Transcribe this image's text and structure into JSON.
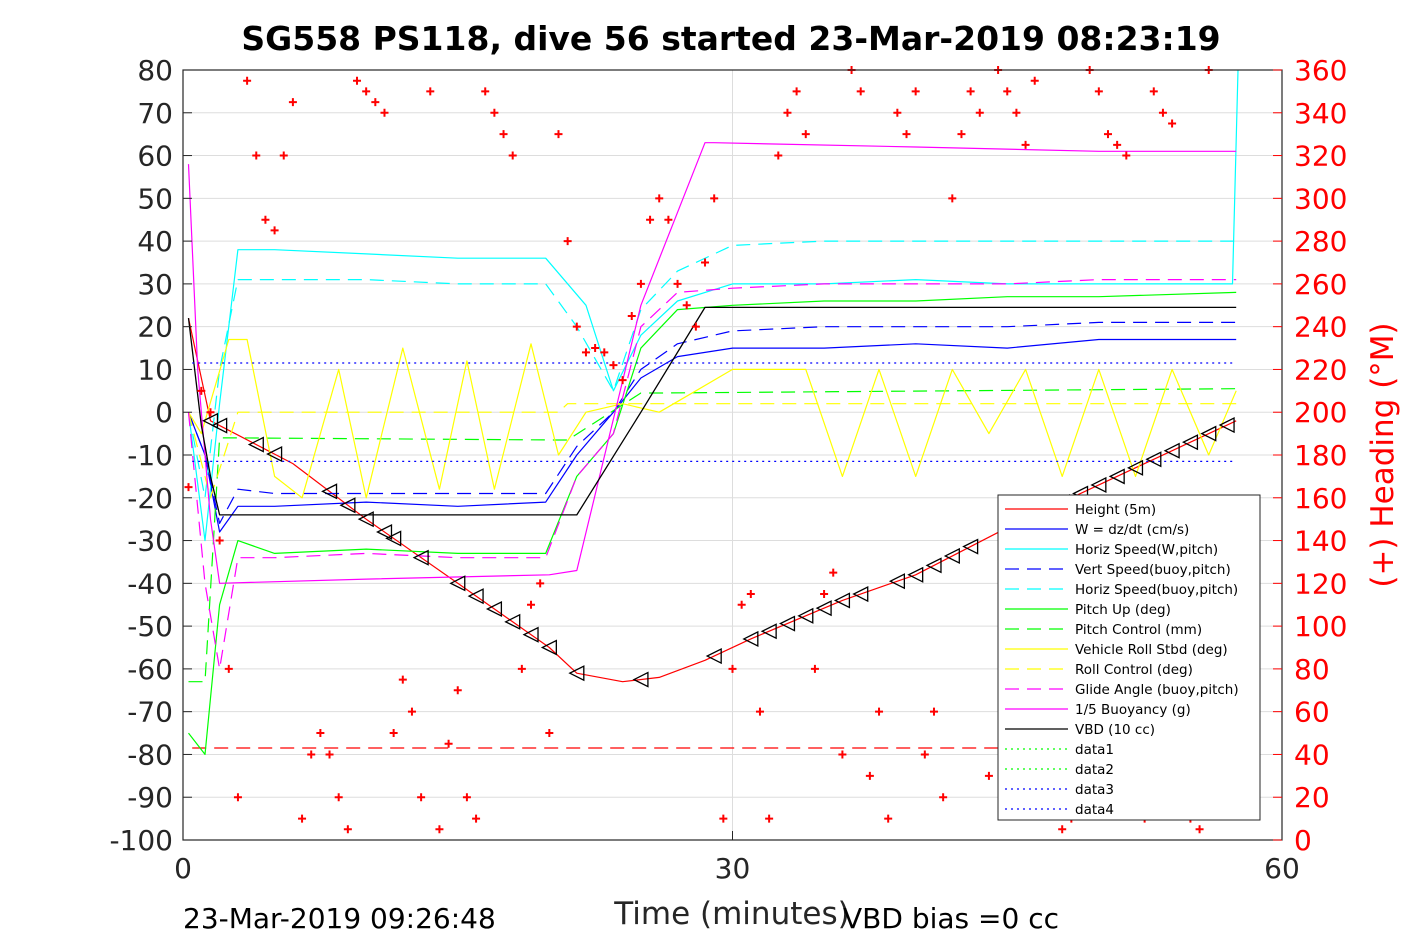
{
  "chart_data": {
    "type": "line",
    "title": "SG558 PS118, dive 56 started 23-Mar-2019 08:23:19",
    "xlabel": "Time (minutes)",
    "ylabel_right": "(+) Heading (°M)",
    "xlim": [
      0,
      60
    ],
    "ylim_left": [
      -100,
      80
    ],
    "ylim_right": [
      0,
      360
    ],
    "x_ticks": [
      "0",
      "30",
      "60"
    ],
    "y_ticks_left": [
      "80",
      "70",
      "60",
      "50",
      "40",
      "30",
      "20",
      "10",
      "0",
      "-10",
      "-20",
      "-30",
      "-40",
      "-50",
      "-60",
      "-70",
      "-80",
      "-90",
      "-100"
    ],
    "y_ticks_right": [
      "360",
      "340",
      "320",
      "300",
      "280",
      "260",
      "240",
      "220",
      "200",
      "180",
      "160",
      "140",
      "120",
      "100",
      "80",
      "60",
      "40",
      "20",
      "0"
    ],
    "grid": true,
    "legend_position": "bottom-right",
    "footer_left": "23-Mar-2019 09:26:48",
    "footer_right": "VBD bias =0 cc",
    "series": [
      {
        "name": "Height (5m)",
        "color": "#ff0000",
        "style": "solid",
        "x": [
          0.3,
          1.5,
          6,
          10,
          15,
          20,
          21.5,
          24,
          26,
          28.5,
          31,
          36,
          40,
          45,
          50,
          55,
          57.5
        ],
        "y": [
          22,
          -2,
          -12,
          -25,
          -40,
          -55,
          -61,
          -63,
          -62,
          -58,
          -53,
          -44,
          -38,
          -27,
          -17,
          -7,
          -2
        ]
      },
      {
        "name": "W = dz/dt (cm/s)",
        "color": "#0000ff",
        "style": "solid",
        "x": [
          0.3,
          1.2,
          2,
          3,
          5,
          10,
          15,
          19.8,
          21.5,
          23.5,
          25,
          27,
          30,
          35,
          40,
          45,
          50,
          57.5
        ],
        "y": [
          0,
          -10,
          -28,
          -22,
          -22,
          -21,
          -22,
          -21,
          -10,
          0,
          8,
          13,
          15,
          15,
          16,
          15,
          17,
          17
        ]
      },
      {
        "name": "Horiz Speed(W,pitch)",
        "color": "#00ffff",
        "style": "solid",
        "x": [
          0.3,
          1.2,
          2,
          3,
          5,
          10,
          15,
          19.8,
          22,
          23.5,
          25,
          27,
          30,
          35,
          40,
          45,
          50,
          57.3,
          57.6
        ],
        "y": [
          0,
          -30,
          2,
          38,
          38,
          37,
          36,
          36,
          25,
          5,
          18,
          26,
          30,
          30,
          31,
          30,
          30,
          30,
          80
        ]
      },
      {
        "name": "Vert Speed(buoy,pitch)",
        "color": "#0000ff",
        "style": "dash",
        "x": [
          0.3,
          1.2,
          2,
          3,
          5,
          10,
          15,
          19.8,
          21.5,
          23.5,
          25,
          27,
          30,
          35,
          40,
          45,
          50,
          57.5
        ],
        "y": [
          0,
          -10,
          -26,
          -18,
          -19,
          -19,
          -19,
          -19,
          -8,
          0,
          10,
          16,
          19,
          20,
          20,
          20,
          21,
          21
        ]
      },
      {
        "name": "Horiz Speed(buoy,pitch)",
        "color": "#00ffff",
        "style": "dash",
        "x": [
          0.3,
          1.2,
          2,
          3,
          5,
          10,
          15,
          19.8,
          21.5,
          23.5,
          25,
          27,
          30,
          35,
          40,
          45,
          50,
          57.5
        ],
        "y": [
          0,
          -20,
          10,
          31,
          31,
          31,
          30,
          30,
          20,
          5,
          24,
          33,
          39,
          40,
          40,
          40,
          40,
          40
        ]
      },
      {
        "name": "Pitch Up (deg)",
        "color": "#00ff00",
        "style": "solid",
        "x": [
          0.3,
          1.2,
          2,
          3,
          5,
          10,
          15,
          19.8,
          21.5,
          23.5,
          25,
          27,
          30,
          35,
          40,
          45,
          50,
          57.5
        ],
        "y": [
          -75,
          -80,
          -45,
          -30,
          -33,
          -32,
          -33,
          -33,
          -15,
          -5,
          15,
          24,
          25,
          26,
          26,
          27,
          27,
          28
        ]
      },
      {
        "name": "Pitch Control (mm)",
        "color": "#00ff00",
        "style": "dash",
        "x": [
          0.3,
          1.2,
          2,
          3,
          20.5,
          21,
          25,
          26,
          57.5
        ],
        "y": [
          -63,
          -63,
          -6,
          -6,
          -6.5,
          -6.5,
          4.5,
          4.5,
          5.5
        ]
      },
      {
        "name": "Vehicle Roll Stbd (deg)",
        "color": "#ffff00",
        "style": "solid",
        "x": [
          0.3,
          1,
          2.5,
          3.5,
          5,
          6.5,
          8.5,
          10,
          12,
          14,
          15.5,
          17,
          19,
          20.5,
          22,
          24,
          26,
          28,
          30,
          32,
          34,
          36,
          38,
          40,
          42,
          44,
          46,
          48,
          50,
          52,
          54,
          56,
          57.5
        ],
        "y": [
          0,
          -5,
          17,
          17,
          -15,
          -20,
          10,
          -20,
          15,
          -18,
          12,
          -18,
          16,
          -10,
          0,
          2,
          0,
          5,
          10,
          10,
          10,
          -15,
          10,
          -15,
          10,
          -5,
          10,
          -15,
          10,
          -15,
          10,
          -10,
          5
        ]
      },
      {
        "name": "Roll Control (deg)",
        "color": "#ffff00",
        "style": "dash",
        "x": [
          0.3,
          1.5,
          3,
          20.5,
          21,
          57.5
        ],
        "y": [
          0,
          -20,
          0,
          0,
          2,
          2
        ]
      },
      {
        "name": "Glide Angle (buoy,pitch)",
        "color": "#ff00ff",
        "style": "dash",
        "x": [
          0.3,
          1.2,
          2,
          3,
          5,
          10,
          15,
          19.8,
          21.5,
          23.5,
          25,
          27,
          30,
          35,
          40,
          45,
          50,
          57.5
        ],
        "y": [
          0,
          -40,
          -60,
          -34,
          -34,
          -33,
          -34,
          -34,
          -15,
          -5,
          20,
          28,
          29,
          30,
          30,
          30,
          31,
          31
        ]
      },
      {
        "name": "1/5 Buoyancy (g)",
        "color": "#ff00ff",
        "style": "solid",
        "x": [
          0.3,
          0.8,
          1.5,
          2,
          10,
          20,
          21.5,
          25,
          28.5,
          29,
          40,
          50,
          57.5
        ],
        "y": [
          58,
          10,
          -25,
          -40,
          -39,
          -38,
          -37,
          25,
          63,
          63,
          62,
          61,
          61
        ]
      },
      {
        "name": "VBD (10 cc)",
        "color": "#000000",
        "style": "solid",
        "x": [
          0.3,
          1,
          1.5,
          2,
          20,
          21.5,
          25,
          28.5,
          57.5
        ],
        "y": [
          22,
          -3,
          -15,
          -24,
          -24,
          -24,
          0,
          24.5,
          24.5
        ]
      },
      {
        "name": "data1",
        "color": "#00ff00",
        "style": "dot",
        "x": [],
        "y": []
      },
      {
        "name": "data2",
        "color": "#00ff00",
        "style": "dot",
        "x": [],
        "y": []
      },
      {
        "name": "data3",
        "color": "#0000ff",
        "style": "dot",
        "x": [
          0.5,
          57.5
        ],
        "y": [
          11.5,
          11.5
        ]
      },
      {
        "name": "data4",
        "color": "#0000ff",
        "style": "dot",
        "x": [
          0.5,
          57.5
        ],
        "y": [
          -11.5,
          -11.5
        ]
      }
    ],
    "reference_lines": [
      {
        "color": "#ff0000",
        "style": "dash",
        "x": [
          0.5,
          57.5
        ],
        "y": [
          -78.5,
          -78.5
        ]
      }
    ],
    "heading_series": {
      "color": "#ff0000",
      "marker": "+",
      "axis": "right",
      "x": [
        0.3,
        1,
        1.5,
        2,
        2.5,
        3,
        3.5,
        4,
        4.5,
        5,
        5.5,
        6,
        6.5,
        7,
        7.5,
        8,
        8.5,
        9,
        9.5,
        10,
        10.5,
        11,
        11.5,
        12,
        12.5,
        13,
        13.5,
        14,
        14.5,
        15,
        15.5,
        16,
        16.5,
        17,
        17.5,
        18,
        18.5,
        19,
        19.5,
        20,
        20.5,
        21,
        21.5,
        22,
        22.5,
        23,
        23.5,
        24,
        24.5,
        25,
        25.5,
        26,
        26.5,
        27,
        27.5,
        28,
        28.5,
        29,
        29.5,
        30,
        30.5,
        31,
        31.5,
        32,
        32.5,
        33,
        33.5,
        34,
        34.5,
        35,
        35.5,
        36,
        36.5,
        37,
        37.5,
        38,
        38.5,
        39,
        39.5,
        40,
        40.5,
        41,
        41.5,
        42,
        42.5,
        43,
        43.5,
        44,
        44.5,
        45,
        45.5,
        46,
        46.5,
        47,
        47.5,
        48,
        48.5,
        49,
        49.5,
        50,
        50.5,
        51,
        51.5,
        52,
        52.5,
        53,
        53.5,
        54,
        54.5,
        55,
        55.5,
        56
      ],
      "y": [
        165,
        210,
        200,
        140,
        80,
        20,
        355,
        320,
        290,
        285,
        320,
        345,
        10,
        40,
        50,
        40,
        20,
        5,
        355,
        350,
        345,
        340,
        50,
        75,
        60,
        20,
        350,
        5,
        45,
        70,
        20,
        10,
        350,
        340,
        330,
        320,
        80,
        110,
        120,
        50,
        330,
        280,
        240,
        228,
        230,
        228,
        222,
        215,
        245,
        260,
        290,
        300,
        290,
        260,
        250,
        240,
        270,
        300,
        10,
        80,
        110,
        115,
        60,
        10,
        320,
        340,
        350,
        330,
        80,
        115,
        125,
        40,
        360,
        350,
        30,
        60,
        10,
        340,
        330,
        350,
        40,
        60,
        20,
        300,
        330,
        350,
        340,
        30,
        360,
        350,
        340,
        325,
        355,
        50,
        20,
        5,
        10,
        20,
        360,
        350,
        330,
        325,
        320,
        40,
        10,
        350,
        340,
        335,
        20,
        10,
        5,
        360
      ]
    },
    "markers": {
      "symbol": "triangle",
      "color": "#000000",
      "series": "Height (5m)",
      "x": [
        1.5,
        2,
        4,
        5,
        8,
        9,
        10,
        11,
        11.5,
        13,
        15,
        16,
        17,
        18,
        19,
        20,
        21.5,
        25,
        29,
        31,
        32,
        33,
        34,
        35,
        36,
        37,
        39,
        40,
        41,
        42,
        43,
        45,
        46.5,
        48,
        49,
        50,
        51,
        52,
        53,
        54,
        55,
        56,
        57
      ]
    }
  }
}
